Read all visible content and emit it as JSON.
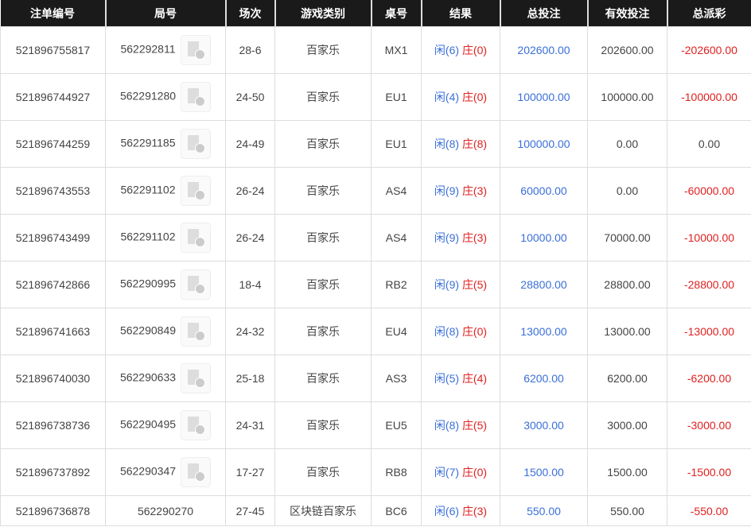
{
  "headers": [
    "注单编号",
    "局号",
    "场次",
    "游戏类别",
    "桌号",
    "结果",
    "总投注",
    "有效投注",
    "总派彩"
  ],
  "rows": [
    {
      "id": "521896755817",
      "round": "562292811",
      "video": true,
      "session": "28-6",
      "game": "百家乐",
      "table": "MX1",
      "player": "闲(6)",
      "banker": "庄(0)",
      "bet": "202600.00",
      "valid": "202600.00",
      "payout": "-202600.00"
    },
    {
      "id": "521896744927",
      "round": "562291280",
      "video": true,
      "session": "24-50",
      "game": "百家乐",
      "table": "EU1",
      "player": "闲(4)",
      "banker": "庄(0)",
      "bet": "100000.00",
      "valid": "100000.00",
      "payout": "-100000.00"
    },
    {
      "id": "521896744259",
      "round": "562291185",
      "video": true,
      "session": "24-49",
      "game": "百家乐",
      "table": "EU1",
      "player": "闲(8)",
      "banker": "庄(8)",
      "bet": "100000.00",
      "valid": "0.00",
      "payout": "0.00"
    },
    {
      "id": "521896743553",
      "round": "562291102",
      "video": true,
      "session": "26-24",
      "game": "百家乐",
      "table": "AS4",
      "player": "闲(9)",
      "banker": "庄(3)",
      "bet": "60000.00",
      "valid": "0.00",
      "payout": "-60000.00"
    },
    {
      "id": "521896743499",
      "round": "562291102",
      "video": true,
      "session": "26-24",
      "game": "百家乐",
      "table": "AS4",
      "player": "闲(9)",
      "banker": "庄(3)",
      "bet": "10000.00",
      "valid": "70000.00",
      "payout": "-10000.00"
    },
    {
      "id": "521896742866",
      "round": "562290995",
      "video": true,
      "session": "18-4",
      "game": "百家乐",
      "table": "RB2",
      "player": "闲(9)",
      "banker": "庄(5)",
      "bet": "28800.00",
      "valid": "28800.00",
      "payout": "-28800.00"
    },
    {
      "id": "521896741663",
      "round": "562290849",
      "video": true,
      "session": "24-32",
      "game": "百家乐",
      "table": "EU4",
      "player": "闲(8)",
      "banker": "庄(0)",
      "bet": "13000.00",
      "valid": "13000.00",
      "payout": "-13000.00"
    },
    {
      "id": "521896740030",
      "round": "562290633",
      "video": true,
      "session": "25-18",
      "game": "百家乐",
      "table": "AS3",
      "player": "闲(5)",
      "banker": "庄(4)",
      "bet": "6200.00",
      "valid": "6200.00",
      "payout": "-6200.00"
    },
    {
      "id": "521896738736",
      "round": "562290495",
      "video": true,
      "session": "24-31",
      "game": "百家乐",
      "table": "EU5",
      "player": "闲(8)",
      "banker": "庄(5)",
      "bet": "3000.00",
      "valid": "3000.00",
      "payout": "-3000.00"
    },
    {
      "id": "521896737892",
      "round": "562290347",
      "video": true,
      "session": "17-27",
      "game": "百家乐",
      "table": "RB8",
      "player": "闲(7)",
      "banker": "庄(0)",
      "bet": "1500.00",
      "valid": "1500.00",
      "payout": "-1500.00"
    },
    {
      "id": "521896736878",
      "round": "562290270",
      "video": false,
      "session": "27-45",
      "game": "区块链百家乐",
      "table": "BC6",
      "player": "闲(6)",
      "banker": "庄(3)",
      "bet": "550.00",
      "valid": "550.00",
      "payout": "-550.00"
    }
  ],
  "colors": {
    "player": "#3a6fd8",
    "banker": "#e02020",
    "header_bg": "#1a1a1a"
  }
}
